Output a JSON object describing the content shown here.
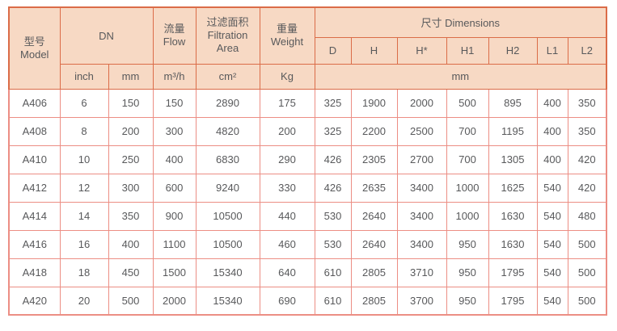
{
  "colors": {
    "header_bg": "#f7d9c4",
    "header_border": "#db6c48",
    "data_border": "#ec8e84",
    "text": "#58595b"
  },
  "header": {
    "model_zh": "型号",
    "model_en": "Model",
    "dn": "DN",
    "flow_zh": "流量",
    "flow_en": "Flow",
    "filtration_zh": "过滤面积",
    "filtration_en1": "Filtration",
    "filtration_en2": "Area",
    "weight_zh": "重量",
    "weight_en": "Weight",
    "dimensions": "尺寸 Dimensions",
    "dim_cols": [
      "D",
      "H",
      "H*",
      "H1",
      "H2",
      "L1",
      "L2"
    ],
    "units": {
      "inch": "inch",
      "mm": "mm",
      "flow": "m³/h",
      "area": "cm²",
      "weight": "Kg",
      "dim": "mm"
    }
  },
  "rows": [
    [
      "A406",
      "6",
      "150",
      "150",
      "2890",
      "175",
      "325",
      "1900",
      "2000",
      "500",
      "895",
      "400",
      "350"
    ],
    [
      "A408",
      "8",
      "200",
      "300",
      "4820",
      "200",
      "325",
      "2200",
      "2500",
      "700",
      "1195",
      "400",
      "350"
    ],
    [
      "A410",
      "10",
      "250",
      "400",
      "6830",
      "290",
      "426",
      "2305",
      "2700",
      "700",
      "1305",
      "400",
      "420"
    ],
    [
      "A412",
      "12",
      "300",
      "600",
      "9240",
      "330",
      "426",
      "2635",
      "3400",
      "1000",
      "1625",
      "540",
      "420"
    ],
    [
      "A414",
      "14",
      "350",
      "900",
      "10500",
      "440",
      "530",
      "2640",
      "3400",
      "1000",
      "1630",
      "540",
      "480"
    ],
    [
      "A416",
      "16",
      "400",
      "1100",
      "10500",
      "460",
      "530",
      "2640",
      "3400",
      "950",
      "1630",
      "540",
      "500"
    ],
    [
      "A418",
      "18",
      "450",
      "1500",
      "15340",
      "640",
      "610",
      "2805",
      "3710",
      "950",
      "1795",
      "540",
      "500"
    ],
    [
      "A420",
      "20",
      "500",
      "2000",
      "15340",
      "690",
      "610",
      "2805",
      "3700",
      "950",
      "1795",
      "540",
      "500"
    ]
  ]
}
